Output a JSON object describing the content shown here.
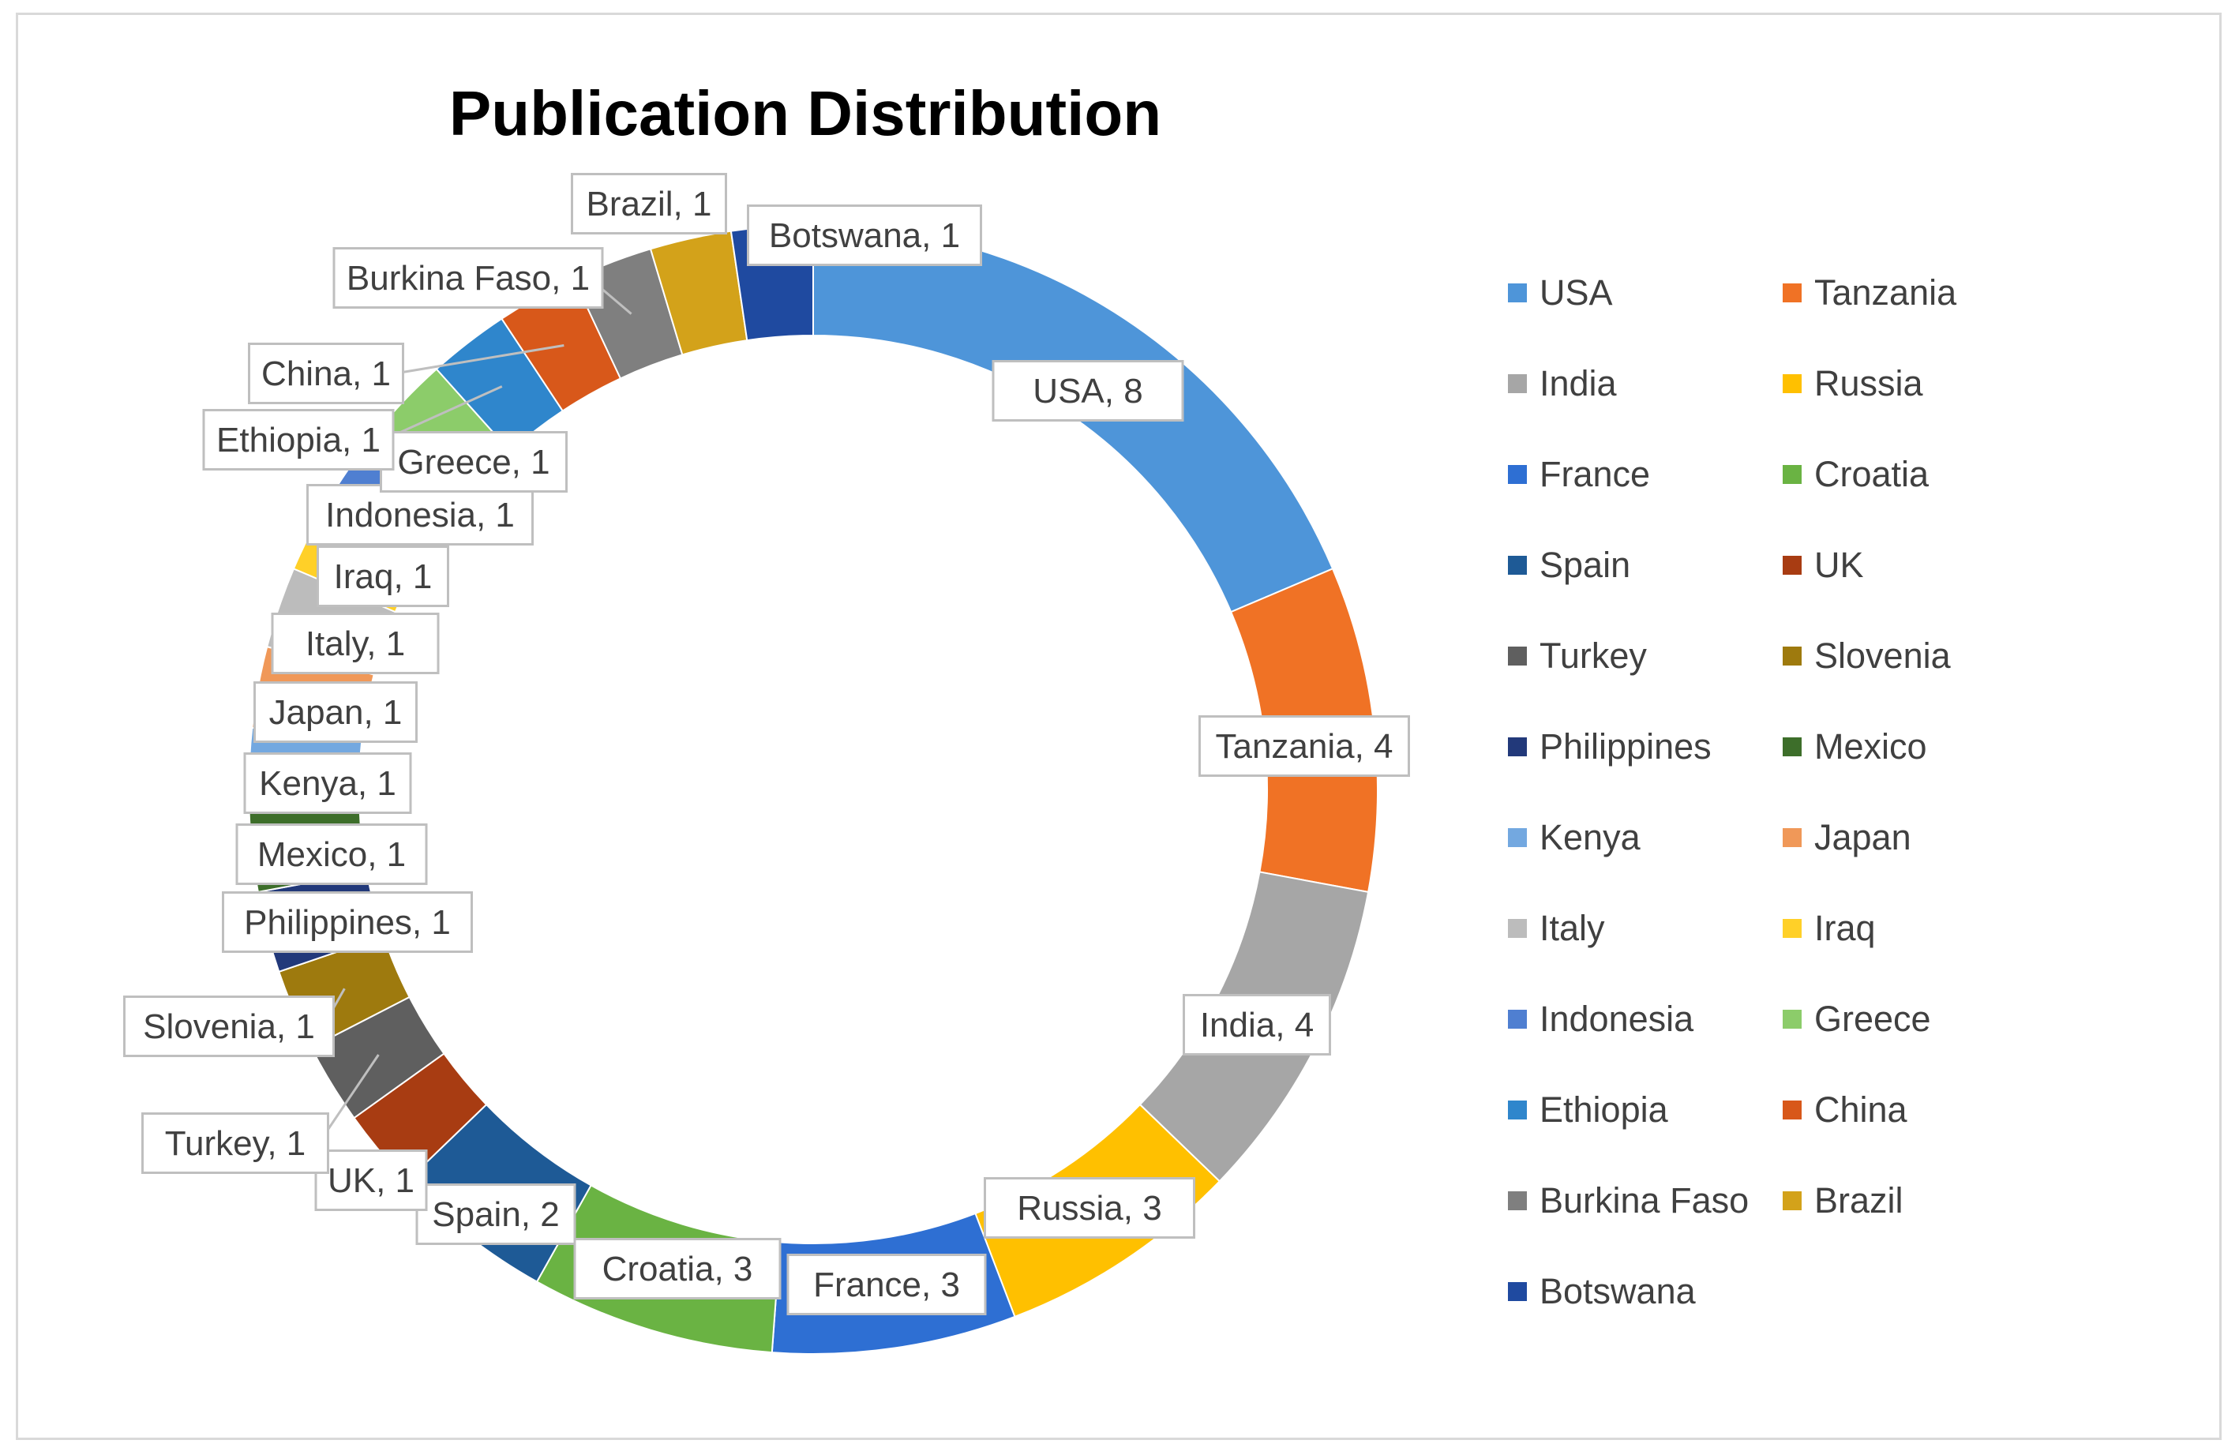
{
  "chart_data": {
    "type": "pie",
    "variant": "doughnut",
    "title": "Publication Distribution",
    "legend_position": "right",
    "categories": [
      "USA",
      "Tanzania",
      "India",
      "Russia",
      "France",
      "Croatia",
      "Spain",
      "UK",
      "Turkey",
      "Slovenia",
      "Philippines",
      "Mexico",
      "Kenya",
      "Japan",
      "Italy",
      "Iraq",
      "Indonesia",
      "Greece",
      "Ethiopia",
      "China",
      "Burkina Faso",
      "Brazil",
      "Botswana"
    ],
    "values": [
      8,
      4,
      4,
      3,
      3,
      3,
      2,
      1,
      1,
      1,
      1,
      1,
      1,
      1,
      1,
      1,
      1,
      1,
      1,
      1,
      1,
      1,
      1
    ],
    "labels": [
      "USA, 8",
      "Tanzania, 4",
      "India, 4",
      "Russia, 3",
      "France, 3",
      "Croatia, 3",
      "Spain, 2",
      "UK, 1",
      "Turkey, 1",
      "Slovenia, 1",
      "Philippines, 1",
      "Mexico, 1",
      "Kenya, 1",
      "Japan, 1",
      "Italy, 1",
      "Iraq, 1",
      "Indonesia, 1",
      "Greece, 1",
      "Ethiopia, 1",
      "China, 1",
      "Burkina Faso, 1",
      "Brazil, 1",
      "Botswana, 1"
    ],
    "colors": [
      "#4e95d9",
      "#f07225",
      "#a6a6a6",
      "#ffc000",
      "#2e6fd3",
      "#6ab343",
      "#1e5a96",
      "#a83c12",
      "#5f5f5f",
      "#9e7a0e",
      "#22397a",
      "#3d6e2a",
      "#73a8e0",
      "#f09858",
      "#bcbcbc",
      "#ffd028",
      "#4f7fd1",
      "#8ccc6a",
      "#2f86cc",
      "#d8581a",
      "#7f7f7f",
      "#d3a21a",
      "#1f4aa0"
    ]
  }
}
